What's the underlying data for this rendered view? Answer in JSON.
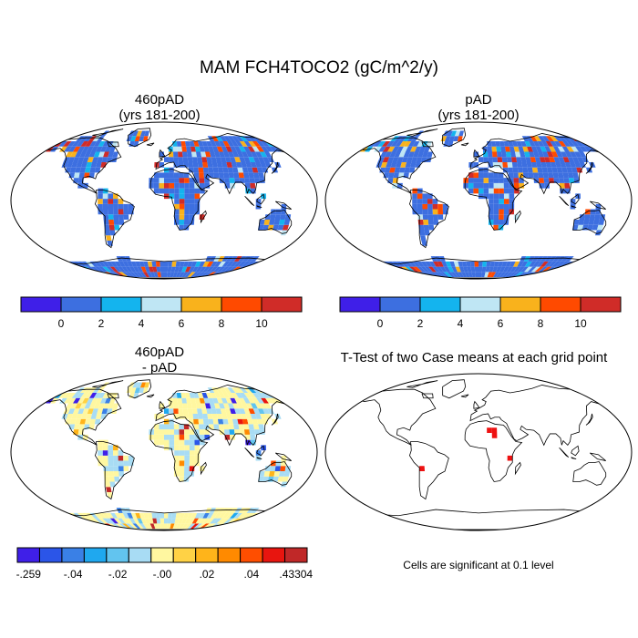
{
  "figure": {
    "title": "MAM FCH4TOCO2 (gC/m^2/y)",
    "panels": [
      {
        "line1": "460pAD",
        "line2": "(yrs 181-200)"
      },
      {
        "line1": "pAD",
        "line2": "(yrs 181-200)"
      },
      {
        "line1": "460pAD",
        "line2": "- pAD"
      },
      {
        "line1": "T-Test of two Case means at each grid point",
        "line2": ""
      }
    ],
    "significance_note": "Cells are significant at 0.1 level"
  },
  "colorbar_main": {
    "colors": [
      "#3f1fe8",
      "#3d6fe0",
      "#14b4ee",
      "#bfe6f4",
      "#f9b21c",
      "#ff4a00",
      "#d02c28"
    ],
    "labels": [
      "0",
      "2",
      "4",
      "6",
      "8",
      "10"
    ]
  },
  "colorbar_diff": {
    "colors": [
      "#3f1fe8",
      "#2b55e8",
      "#3a80e6",
      "#1fa8ef",
      "#62c4ef",
      "#a8dcf4",
      "#fff7a0",
      "#ffd245",
      "#ffb41a",
      "#ff8a00",
      "#ff4e00",
      "#e8150f",
      "#c02828"
    ],
    "labels": [
      ".259",
      ".04",
      ".02",
      ".00",
      ".02",
      ".04",
      ".43304"
    ],
    "label_signs": [
      "-",
      "-",
      "-",
      "-",
      "",
      "",
      ""
    ]
  },
  "map_colors": {
    "ocean": "#ffffff",
    "land_main": "#3d6fe0",
    "land_diff": "#fff7a0",
    "outline": "#000000"
  }
}
